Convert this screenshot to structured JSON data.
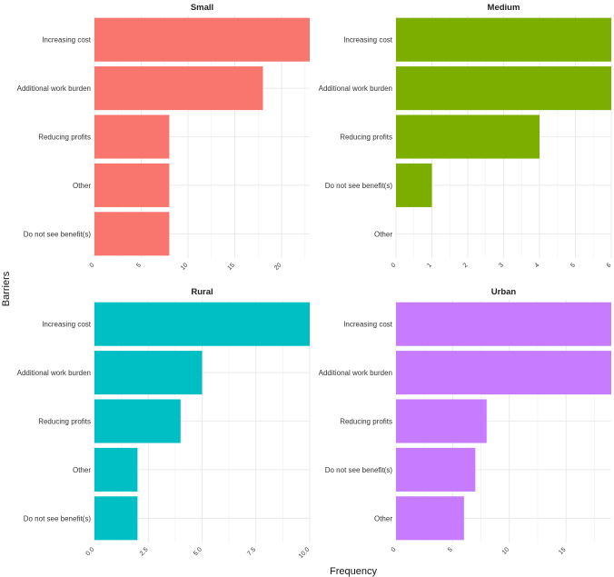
{
  "chart_data": {
    "type": "bar",
    "orientation": "horizontal",
    "xlabel": "Frequency",
    "ylabel": "Barriers",
    "grid": true,
    "panels": [
      {
        "title": "Small",
        "color": "#F8766D",
        "categories": [
          "Increasing cost",
          "Additional work burden",
          "Reducing profits",
          "Other",
          "Do not see benefit(s)"
        ],
        "values": [
          23,
          18,
          8,
          8,
          8
        ],
        "xlim": [
          0,
          23
        ],
        "ticks": [
          0,
          5,
          10,
          15,
          20
        ],
        "tick_labels": [
          "0",
          "5",
          "10",
          "15",
          "20"
        ]
      },
      {
        "title": "Medium",
        "color": "#7CAE00",
        "categories": [
          "Increasing cost",
          "Additional work burden",
          "Reducing profits",
          "Do not see benefit(s)",
          "Other"
        ],
        "values": [
          6,
          6,
          4,
          1,
          0
        ],
        "xlim": [
          0,
          6
        ],
        "ticks": [
          0,
          1,
          2,
          3,
          4,
          5,
          6
        ],
        "tick_labels": [
          "0",
          "1",
          "2",
          "3",
          "4",
          "5",
          "6"
        ]
      },
      {
        "title": "Rural",
        "color": "#00BFC4",
        "categories": [
          "Increasing cost",
          "Additional work burden",
          "Reducing profits",
          "Other",
          "Do not see benefit(s)"
        ],
        "values": [
          10,
          5,
          4,
          2,
          2
        ],
        "xlim": [
          0,
          10
        ],
        "ticks": [
          0,
          2.5,
          5,
          7.5,
          10
        ],
        "tick_labels": [
          "0.0",
          "2.5",
          "5.0",
          "7.5",
          "10.0"
        ]
      },
      {
        "title": "Urban",
        "color": "#C77CFF",
        "categories": [
          "Increasing cost",
          "Additional work burden",
          "Reducing profits",
          "Do not see benefit(s)",
          "Other"
        ],
        "values": [
          19,
          19,
          8,
          7,
          6
        ],
        "xlim": [
          0,
          19
        ],
        "ticks": [
          0,
          5,
          10,
          15
        ],
        "tick_labels": [
          "0",
          "5",
          "10",
          "15"
        ]
      }
    ]
  }
}
